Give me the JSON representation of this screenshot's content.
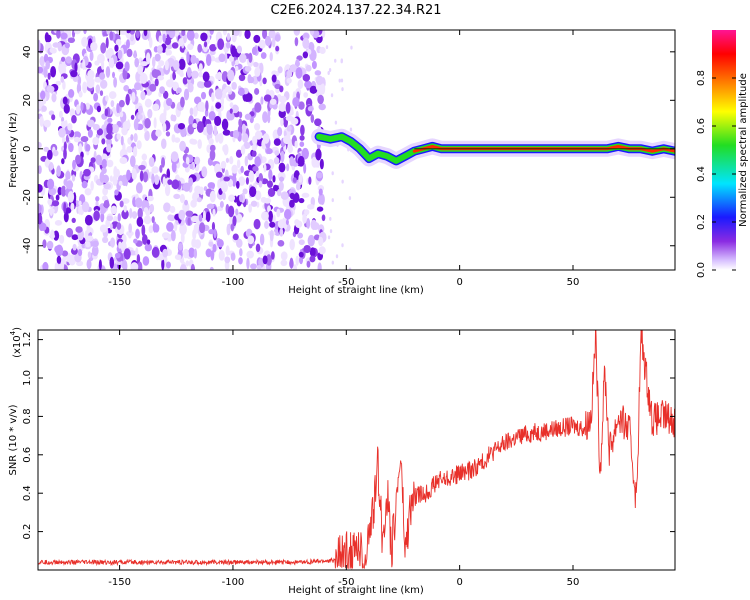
{
  "title": "C2E6.2024.137.22.34.R21",
  "chart_data": [
    {
      "type": "heatmap",
      "xlabel": "Height of straight line (km)",
      "ylabel": "Frequency (Hz)",
      "xlim": [
        -186,
        95
      ],
      "ylim": [
        -50,
        49
      ],
      "xticks": [
        -150,
        -100,
        -50,
        0,
        50
      ],
      "xtick_labels": [
        "-150",
        "-100",
        "-50",
        "0",
        "50"
      ],
      "yticks": [
        -40,
        -20,
        0,
        20,
        40
      ],
      "ytick_labels": [
        "-40",
        "-20",
        "0",
        "20",
        "40"
      ],
      "noise_region_x": [
        -186,
        -60
      ],
      "signal_track": {
        "x": [
          -62,
          -57,
          -52,
          -48,
          -44,
          -40,
          -36,
          -32,
          -28,
          -24,
          -20,
          -16,
          -12,
          -8,
          -4,
          0,
          5,
          10,
          20,
          40,
          55,
          60,
          65,
          70,
          75,
          80,
          85,
          90,
          95
        ],
        "y": [
          5,
          4,
          5,
          3,
          0,
          -4,
          -2,
          -3,
          -5,
          -3,
          -1,
          0,
          1,
          0,
          0,
          0,
          0,
          0,
          0,
          0,
          0,
          0,
          0,
          1,
          0,
          0,
          -1,
          0,
          -1
        ]
      },
      "colorbar": {
        "label": "Normalized spectral amplitude",
        "ticks": [
          0.0,
          0.2,
          0.4,
          0.6,
          0.8
        ],
        "tick_labels": [
          "0.0",
          "0.2",
          "0.4",
          "0.6",
          "0.8"
        ],
        "range": [
          0,
          1
        ]
      }
    },
    {
      "type": "line",
      "xlabel": "Height of straight line (km)",
      "ylabel": "SNR (10 * v/v)",
      "scale_label": "(x10",
      "scale_exp": "4",
      "scale_close": ")",
      "xlim": [
        -186,
        95
      ],
      "ylim": [
        0,
        1.25
      ],
      "xticks": [
        -150,
        -100,
        -50,
        0,
        50
      ],
      "xtick_labels": [
        "-150",
        "-100",
        "-50",
        "0",
        "50"
      ],
      "yticks": [
        0.2,
        0.4,
        0.6,
        0.8,
        1.0,
        1.2
      ],
      "ytick_labels": [
        "0.2",
        "0.4",
        "0.6",
        "0.8",
        "1.0",
        "1.2"
      ],
      "series": [
        {
          "color": "#e8302a",
          "x": [
            -186,
            -160,
            -130,
            -100,
            -70,
            -55,
            -50,
            -45,
            -42,
            -38,
            -36,
            -34,
            -32,
            -30,
            -28,
            -26,
            -24,
            -22,
            -20,
            -15,
            -10,
            -5,
            0,
            5,
            10,
            15,
            20,
            25,
            30,
            35,
            40,
            45,
            50,
            55,
            58,
            60,
            62,
            64,
            66,
            70,
            75,
            78,
            80,
            85,
            90,
            95
          ],
          "y": [
            0.04,
            0.04,
            0.04,
            0.04,
            0.04,
            0.05,
            0.08,
            0.12,
            0.05,
            0.3,
            0.55,
            0.15,
            0.4,
            0.1,
            0.35,
            0.6,
            0.08,
            0.3,
            0.38,
            0.4,
            0.46,
            0.48,
            0.5,
            0.52,
            0.56,
            0.62,
            0.66,
            0.69,
            0.71,
            0.72,
            0.73,
            0.74,
            0.75,
            0.74,
            0.8,
            1.22,
            0.5,
            1.05,
            0.62,
            0.8,
            0.72,
            0.35,
            1.22,
            0.78,
            0.8,
            0.78
          ]
        }
      ]
    }
  ]
}
